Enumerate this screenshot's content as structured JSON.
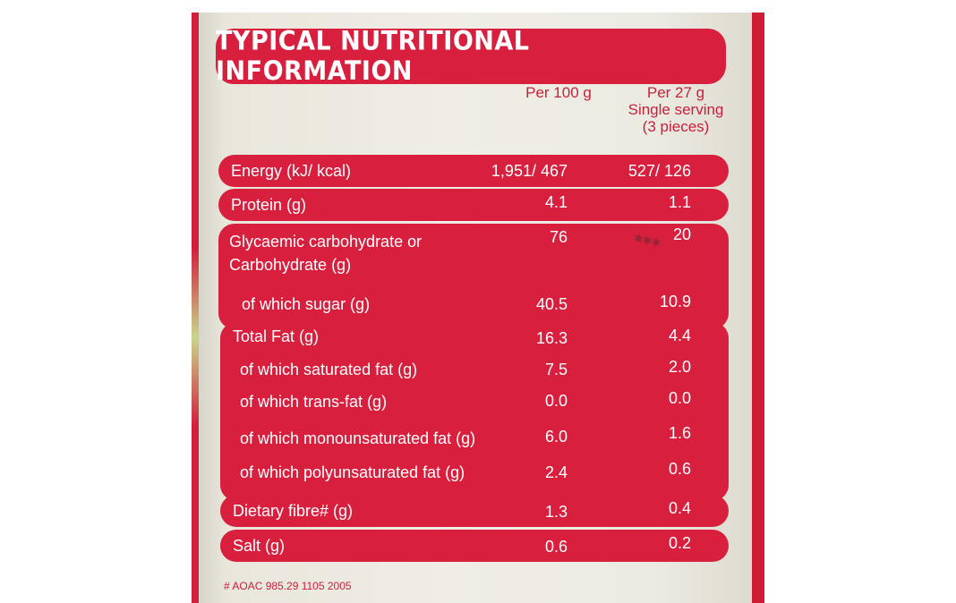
{
  "panel": {
    "title": "TYPICAL NUTRITIONAL INFORMATION",
    "columns": {
      "per100": "Per 100 g",
      "per_serving_line1": "Per 27 g",
      "per_serving_line2": "Single serving",
      "per_serving_line3": "(3 pieces)"
    },
    "rows": [
      {
        "label": "Energy (kJ/ kcal)",
        "per100": "1,951/ 467",
        "per_serving": "527/ 126"
      },
      {
        "label": "Protein (g)",
        "per100": "4.1",
        "per_serving": "1.1"
      },
      {
        "label_line1": "Glycaemic carbohydrate or",
        "label_line2": "Carbohydrate (g)",
        "per100": "76",
        "per_serving": "20"
      },
      {
        "label": "of which sugar (g)",
        "per100": "40.5",
        "per_serving": "10.9"
      },
      {
        "label": "Total Fat (g)",
        "per100": "16.3",
        "per_serving": "4.4"
      },
      {
        "label": "of which saturated fat (g)",
        "per100": "7.5",
        "per_serving": "2.0"
      },
      {
        "label": "of which trans-fat (g)",
        "per100": "0.0",
        "per_serving": "0.0"
      },
      {
        "label": "of which monounsaturated fat (g)",
        "per100": "6.0",
        "per_serving": "1.6"
      },
      {
        "label": "of which polyunsaturated fat (g)",
        "per100": "2.4",
        "per_serving": "0.6"
      },
      {
        "label": "Dietary fibre# (g)",
        "per100": "1.3",
        "per_serving": "0.4"
      },
      {
        "label": "Salt (g)",
        "per100": "0.6",
        "per_serving": "0.2"
      }
    ],
    "footnote": "# AOAC 985.29 1105 2005"
  },
  "colors": {
    "band_red": "#d81f3e",
    "label_cream": "#efede4",
    "text_red": "#c8203b"
  }
}
